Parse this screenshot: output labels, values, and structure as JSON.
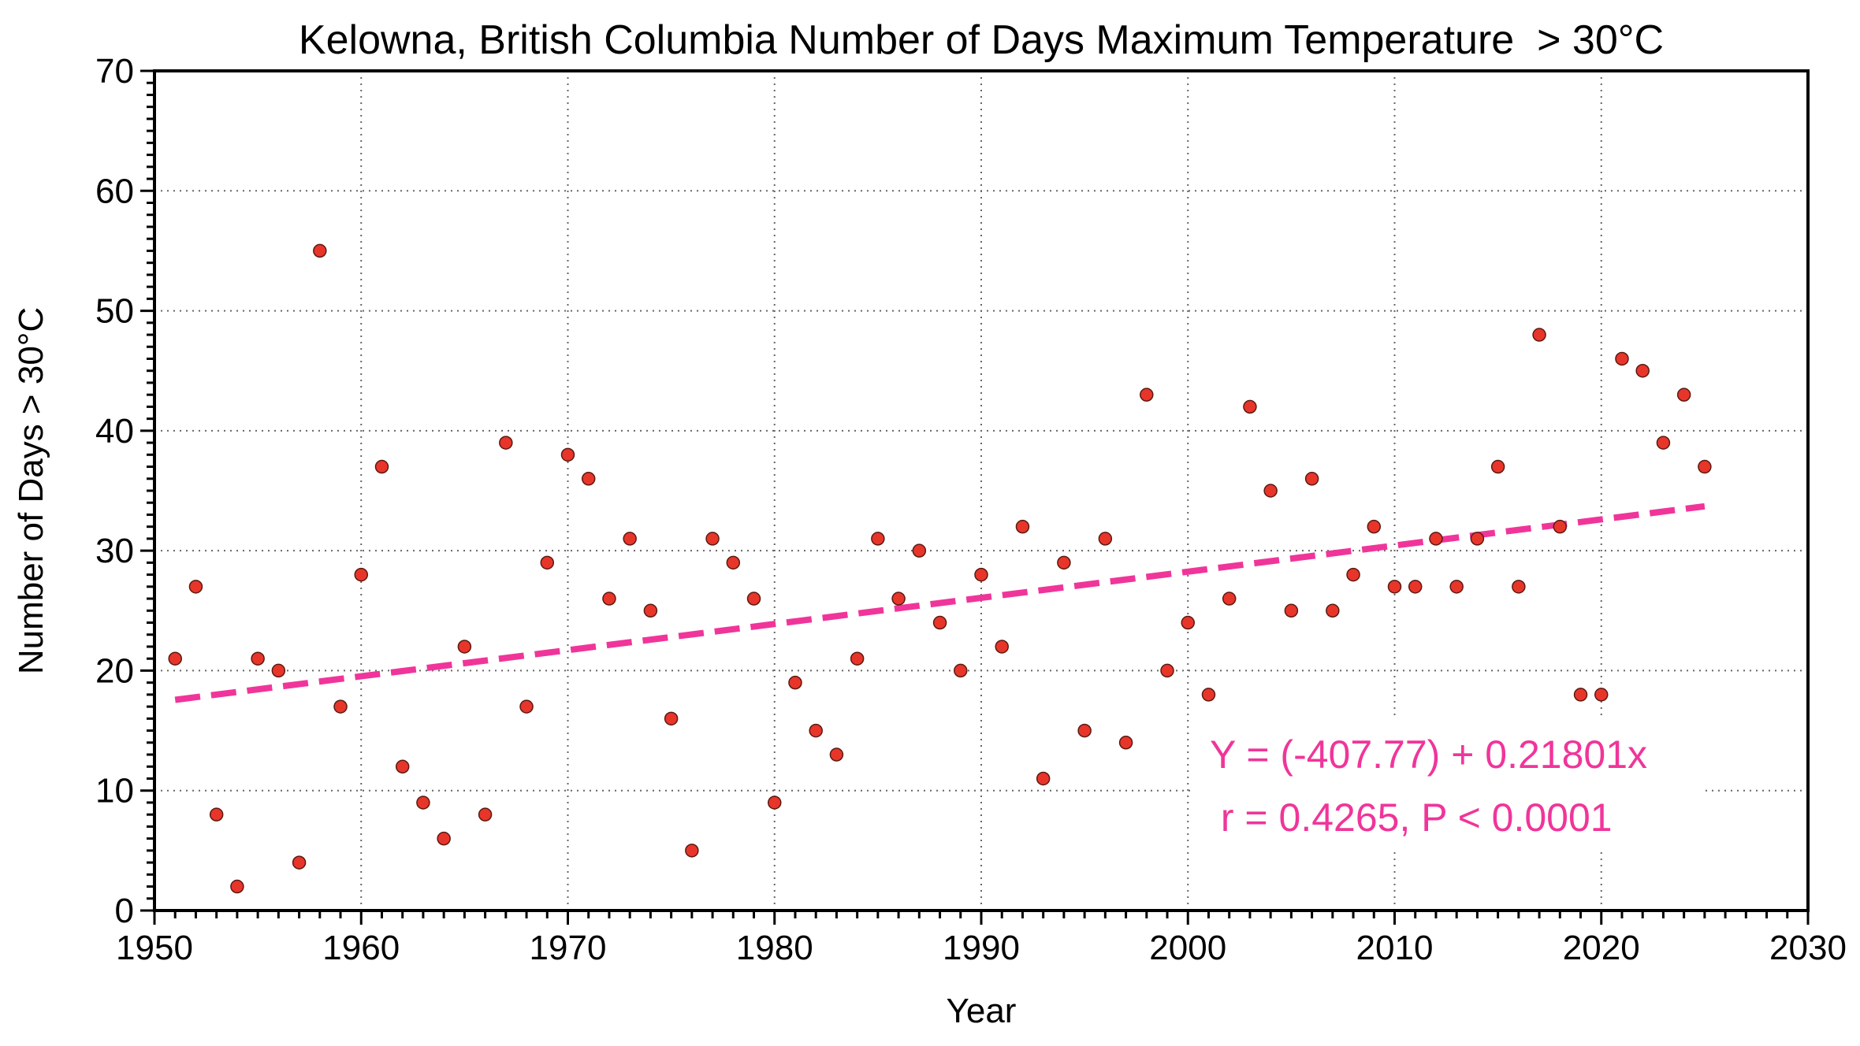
{
  "chart_data": {
    "type": "scatter",
    "title": "Kelowna, British Columbia Number of Days Maximum Temperature  > 30°C",
    "xlabel": "Year",
    "ylabel": "Number of Days > 30°C",
    "xlim": [
      1950,
      2030
    ],
    "ylim": [
      0,
      70
    ],
    "x_ticks": [
      1950,
      1960,
      1970,
      1980,
      1990,
      2000,
      2010,
      2020,
      2030
    ],
    "y_ticks": [
      0,
      10,
      20,
      30,
      40,
      50,
      60,
      70
    ],
    "x_minor_step": 1,
    "y_minor_step": 1,
    "grid": true,
    "series": [
      {
        "name": "Days > 30°C",
        "marker_color": "#e8352a",
        "x": [
          1951,
          1952,
          1953,
          1954,
          1955,
          1956,
          1957,
          1958,
          1959,
          1960,
          1961,
          1962,
          1963,
          1964,
          1965,
          1966,
          1967,
          1968,
          1969,
          1970,
          1971,
          1972,
          1973,
          1974,
          1975,
          1976,
          1977,
          1978,
          1979,
          1980,
          1981,
          1982,
          1983,
          1984,
          1985,
          1986,
          1987,
          1988,
          1989,
          1990,
          1991,
          1992,
          1993,
          1994,
          1995,
          1996,
          1997,
          1998,
          1999,
          2000,
          2001,
          2002,
          2003,
          2004,
          2005,
          2006,
          2007,
          2008,
          2009,
          2010,
          2011,
          2012,
          2013,
          2014,
          2015,
          2016,
          2017,
          2018,
          2019,
          2020,
          2021,
          2022,
          2023,
          2024,
          2025
        ],
        "y": [
          21,
          27,
          8,
          2,
          21,
          20,
          4,
          55,
          17,
          28,
          37,
          12,
          9,
          6,
          22,
          8,
          39,
          17,
          29,
          38,
          36,
          26,
          31,
          25,
          16,
          5,
          31,
          29,
          26,
          9,
          19,
          15,
          13,
          21,
          31,
          26,
          30,
          24,
          20,
          28,
          22,
          32,
          11,
          29,
          15,
          31,
          14,
          43,
          20,
          24,
          18,
          26,
          42,
          35,
          25,
          36,
          25,
          28,
          32,
          27,
          27,
          31,
          27,
          31,
          37,
          27,
          48,
          32,
          18,
          18,
          46,
          45,
          39,
          43,
          37
        ]
      }
    ],
    "trendline": {
      "intercept": -407.77,
      "slope": 0.21801,
      "x_range": [
        1951,
        2025
      ],
      "color": "#f0359a",
      "style": "dashed"
    },
    "annotations": [
      "Y = (-407.77) + 0.21801x",
      " r = 0.4265, P < 0.0001"
    ]
  }
}
